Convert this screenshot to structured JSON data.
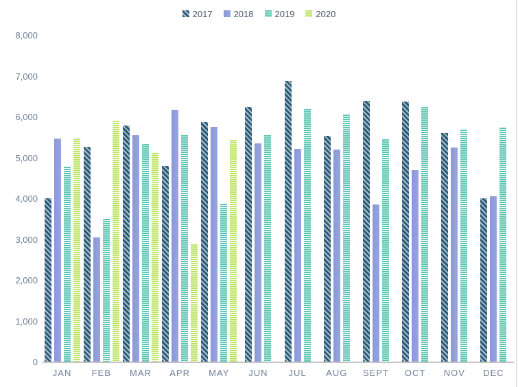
{
  "chart_data": {
    "type": "bar",
    "title": "",
    "xlabel": "",
    "ylabel": "",
    "categories": [
      "JAN",
      "FEB",
      "MAR",
      "APR",
      "MAY",
      "JUN",
      "JUL",
      "AUG",
      "SEPT",
      "OCT",
      "NOV",
      "DEC"
    ],
    "series": [
      {
        "name": "2017",
        "pattern": "diagonal-hatch",
        "color": "#2f5a73",
        "pattern_color": "#a9c2d2",
        "values": [
          4020,
          5270,
          5800,
          4800,
          5890,
          6250,
          6890,
          5540,
          6400,
          6390,
          5610,
          4020
        ]
      },
      {
        "name": "2018",
        "pattern": "solid",
        "color": "#8b98d9",
        "pattern_color": "#98a5e0",
        "values": [
          5480,
          3060,
          5570,
          6180,
          5760,
          5360,
          5230,
          5210,
          3870,
          4700,
          5260,
          4070
        ]
      },
      {
        "name": "2019",
        "pattern": "horizontal-stripes",
        "color": "#5fc6b3",
        "pattern_color": "#f2fbf9",
        "values": [
          4790,
          3510,
          5340,
          5560,
          3890,
          5560,
          6200,
          6070,
          5470,
          6260,
          5700,
          5740
        ]
      },
      {
        "name": "2020",
        "pattern": "horizontal-stripes",
        "color": "#bfe468",
        "pattern_color": "#fbfef2",
        "values": [
          5480,
          5910,
          5120,
          2890,
          5450,
          null,
          null,
          null,
          null,
          null,
          null,
          null
        ]
      }
    ],
    "ylim": [
      0,
      8000
    ],
    "ytick_interval": 1000,
    "ytick_labels": [
      "0",
      "1,000",
      "2,000",
      "3,000",
      "4,000",
      "5,000",
      "6,000",
      "7,000",
      "8,000"
    ],
    "legend_position": "top-center",
    "grid": false,
    "axis_label_color": "#6e7e96",
    "legend_text_color": "#44546a",
    "axis_line_color": "#c3c3c3"
  }
}
